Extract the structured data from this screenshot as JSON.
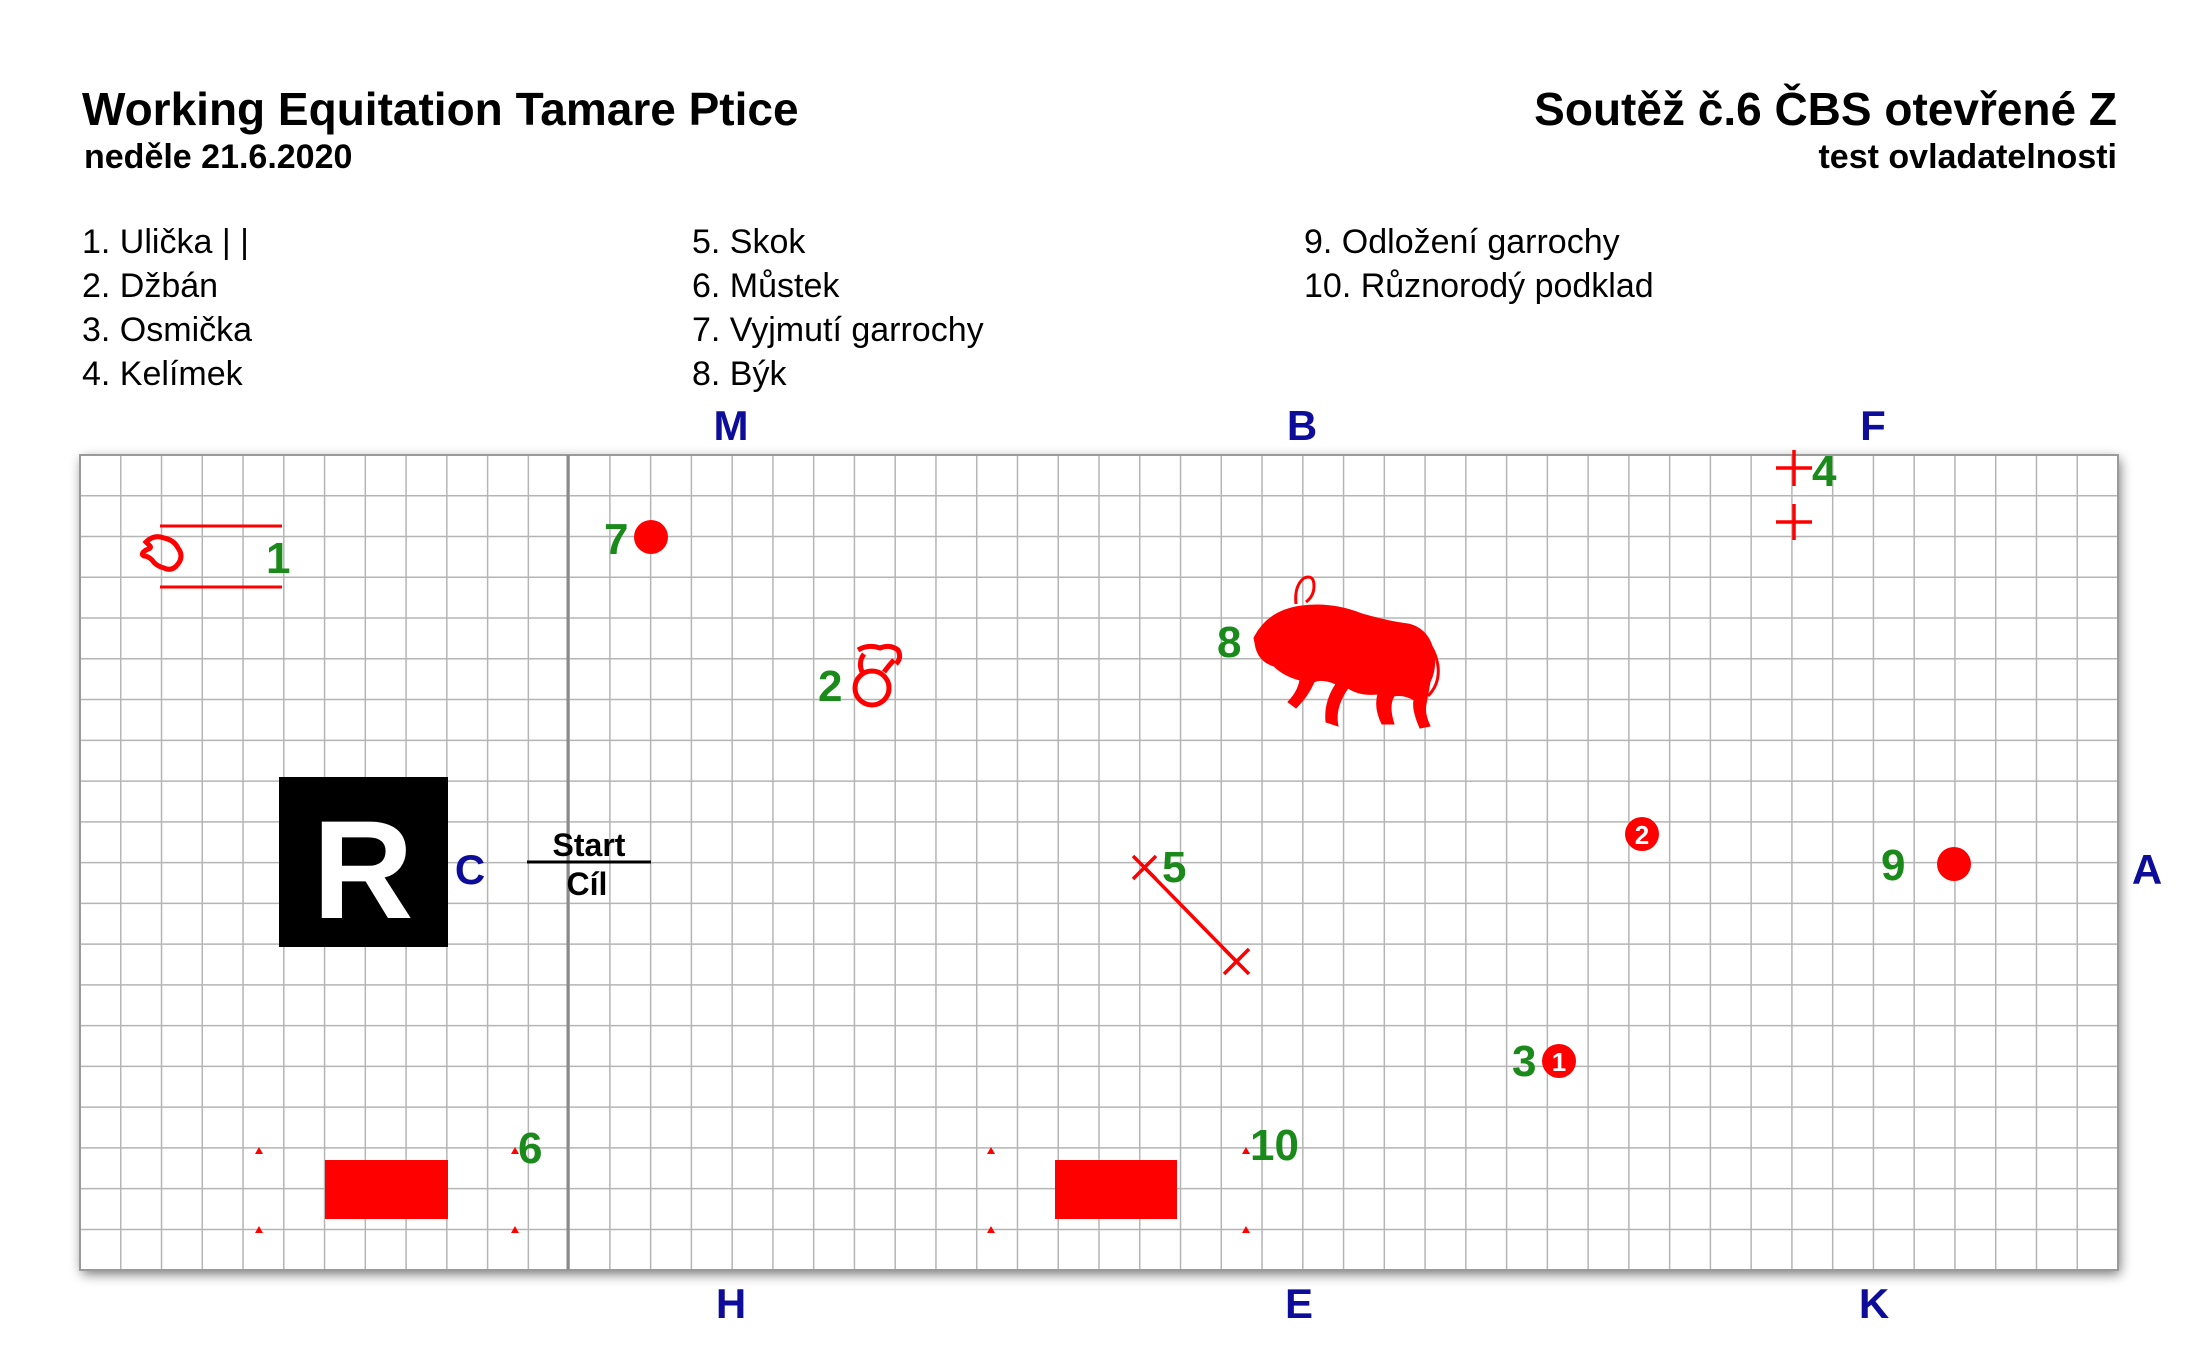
{
  "header": {
    "event_title": "Working Equitation Tamare Ptice",
    "date": "neděle 21.6.2020",
    "competition_title": "Soutěž č.6 ČBS otevřené Z",
    "test_name": "test ovladatelnosti"
  },
  "legend": [
    [
      "1. Ulička | |",
      "2. Džbán",
      "3. Osmička",
      "4. Kelímek"
    ],
    [
      "5. Skok",
      "6. Můstek",
      "7. Vyjmutí garrochy",
      "8. Býk"
    ],
    [
      "9. Odložení garrochy",
      "10. Různorodý podklad"
    ]
  ],
  "arena_letters": {
    "M": "M",
    "B": "B",
    "F": "F",
    "H": "H",
    "E": "E",
    "K": "K",
    "C": "C",
    "A": "A"
  },
  "judge_box_letter": "R",
  "start_finish": {
    "start": "Start",
    "finish": "Cíl"
  },
  "obstacle_numbers": [
    "1",
    "2",
    "3",
    "4",
    "5",
    "6",
    "7",
    "8",
    "9",
    "10"
  ],
  "figure_eight_markers": [
    "1",
    "2"
  ],
  "colors": {
    "arena_letters": "#0d0d9a",
    "obstacle_numbers": "#1a8a1a",
    "obstacles": "#ff0000",
    "grid": "#b5b5b5"
  }
}
